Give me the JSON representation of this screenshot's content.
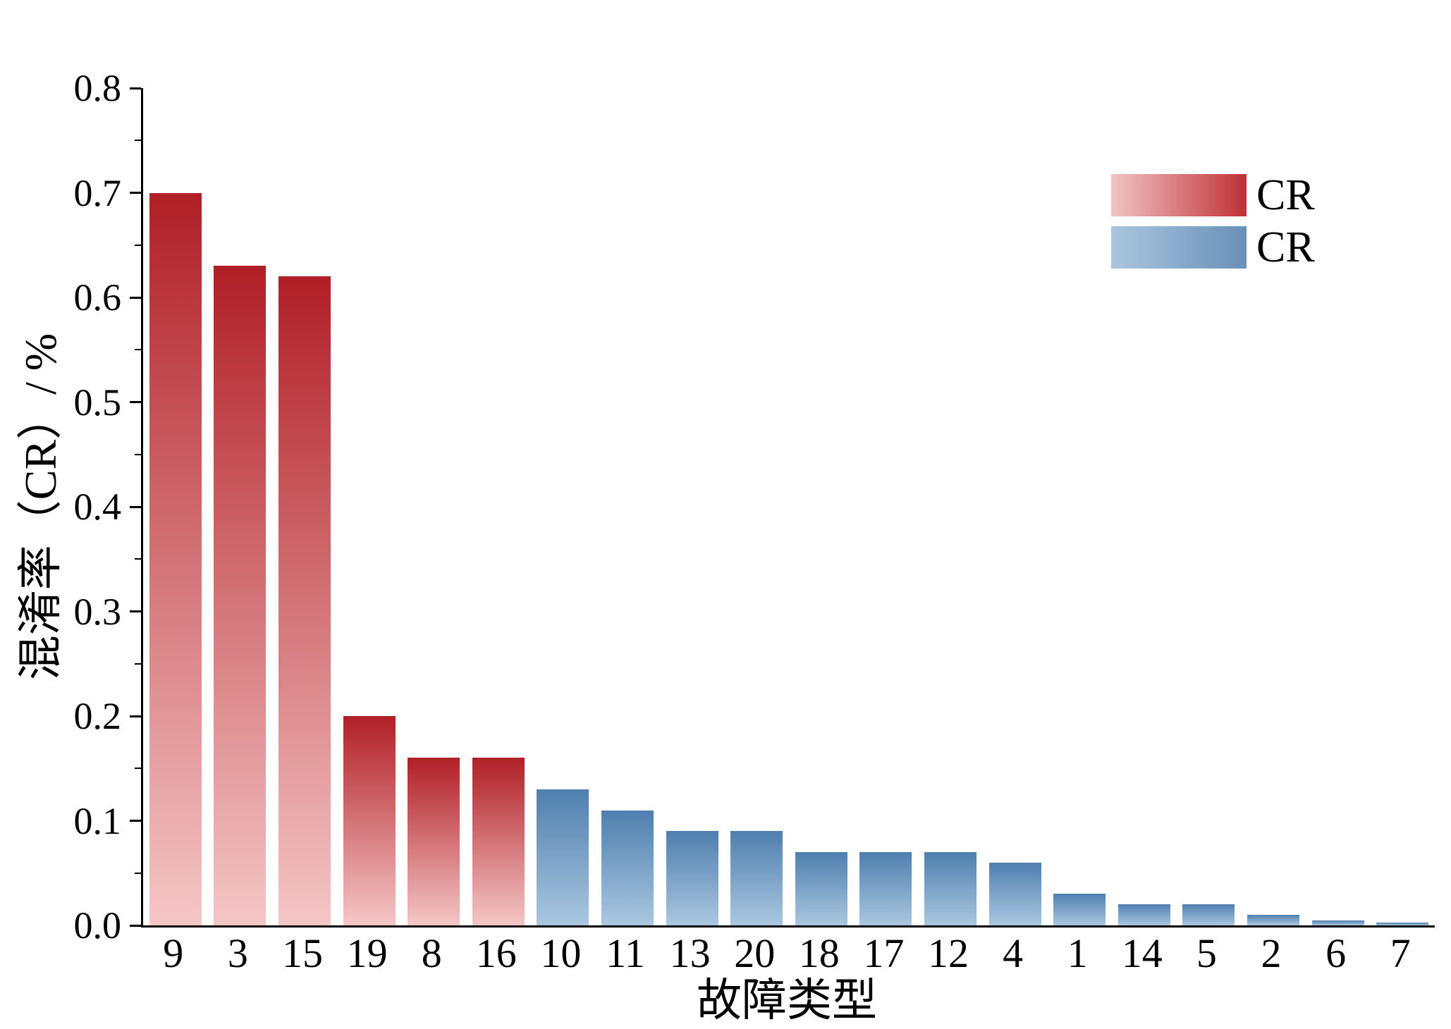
{
  "chart_data": {
    "type": "bar",
    "title": "",
    "xlabel": "故障类型",
    "ylabel": "混淆率（CR）/ %",
    "ylim": [
      0,
      0.8
    ],
    "y_major_step": 0.1,
    "y_minor_step": 0.05,
    "y_tick_decimals": 1,
    "grid": false,
    "legend_position": "top-right",
    "categories": [
      "9",
      "3",
      "15",
      "19",
      "8",
      "16",
      "10",
      "11",
      "13",
      "20",
      "18",
      "17",
      "12",
      "4",
      "1",
      "14",
      "5",
      "2",
      "6",
      "7"
    ],
    "values": [
      0.7,
      0.63,
      0.62,
      0.2,
      0.16,
      0.16,
      0.13,
      0.11,
      0.09,
      0.09,
      0.07,
      0.07,
      0.07,
      0.06,
      0.03,
      0.02,
      0.02,
      0.01,
      0.005,
      0.003
    ],
    "bar_groups": [
      "red",
      "red",
      "red",
      "red",
      "red",
      "red",
      "blue",
      "blue",
      "blue",
      "blue",
      "blue",
      "blue",
      "blue",
      "blue",
      "blue",
      "blue",
      "blue",
      "blue",
      "blue",
      "blue"
    ],
    "colors": {
      "axis": "#000000",
      "red": {
        "top": "#b01f26",
        "bottom": "#f5c6c6",
        "swatch_left": "#f2c4c4",
        "swatch_right": "#bf3036"
      },
      "blue": {
        "top": "#4f7fae",
        "bottom": "#aac7e0",
        "swatch_left": "#aac6de",
        "swatch_right": "#6890b8"
      }
    },
    "legend": [
      {
        "label": "CR",
        "swatch": "red"
      },
      {
        "label": "CR",
        "swatch": "blue"
      }
    ]
  }
}
